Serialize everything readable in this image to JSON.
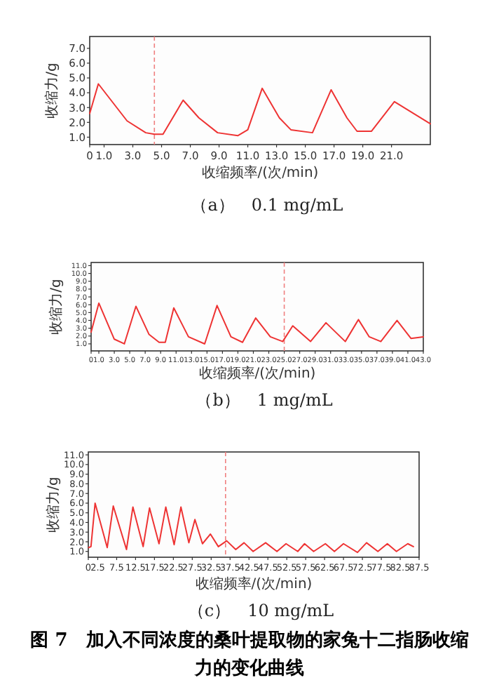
{
  "chart_data": [
    {
      "type": "line",
      "title": "（a）　0.1 mg/mL",
      "xlabel": "收缩频率/(次/min)",
      "ylabel": "收缩力/g",
      "x": [
        0,
        0.6,
        2.6,
        3.9,
        4.5,
        5.1,
        6.5,
        7.6,
        8.9,
        10.3,
        11,
        12,
        13.2,
        14,
        15.5,
        16.8,
        17.9,
        18.6,
        19.6,
        21.2,
        23.7
      ],
      "series": [
        {
          "color": "#ee3333",
          "values": [
            2.6,
            4.6,
            2.1,
            1.3,
            1.2,
            1.2,
            3.5,
            2.3,
            1.3,
            1.1,
            1.5,
            4.3,
            2.3,
            1.5,
            1.3,
            4.2,
            2.3,
            1.4,
            1.4,
            3.4,
            1.9
          ]
        }
      ],
      "xlim": [
        0,
        23.7
      ],
      "ylim": [
        0.5,
        7.8
      ],
      "xticks": [
        0,
        {
          "value": 1,
          "label": "1.0"
        },
        {
          "value": 3,
          "label": "3.0"
        },
        {
          "value": 5,
          "label": "5.0"
        },
        {
          "value": 7,
          "label": "7.0"
        },
        {
          "value": 9,
          "label": "9.0"
        },
        {
          "value": 11,
          "label": "11.0"
        },
        {
          "value": 13,
          "label": "13.0"
        },
        {
          "value": 15,
          "label": "15.0"
        },
        {
          "value": 17,
          "label": "17.0"
        },
        {
          "value": 19,
          "label": "19.0"
        },
        {
          "value": 21,
          "label": "21.0"
        }
      ],
      "yticks": [
        {
          "value": 1,
          "label": "1.0"
        },
        {
          "value": 2,
          "label": "2.0"
        },
        {
          "value": 3,
          "label": "3.0"
        },
        {
          "value": 4,
          "label": "4.0"
        },
        {
          "value": 5,
          "label": "5.0"
        },
        {
          "value": 6,
          "label": "6.0"
        },
        {
          "value": 7,
          "label": "7.0"
        }
      ],
      "ref_lines": [
        {
          "axis": "x",
          "value": 4.5,
          "color": "#f08080",
          "line_style": "dashed"
        }
      ]
    },
    {
      "type": "line",
      "title": "（b）　1 mg/mL",
      "xlabel": "收缩频率/(次/min)",
      "ylabel": "收缩力/g",
      "x": [
        0,
        1,
        3,
        4.3,
        5.8,
        7.5,
        8.8,
        9.6,
        10.7,
        12.6,
        14.7,
        16.3,
        18.1,
        19.6,
        21.3,
        23.2,
        24.8,
        26.1,
        28.4,
        30.4,
        32.9,
        34.6,
        36,
        37.5,
        39.6,
        41.4,
        43
      ],
      "series": [
        {
          "color": "#ee3333",
          "values": [
            2.5,
            6.2,
            1.6,
            1.0,
            5.8,
            2.2,
            1.2,
            1.2,
            5.6,
            1.9,
            1.0,
            5.9,
            1.9,
            1.2,
            4.3,
            1.9,
            1.3,
            3.3,
            1.3,
            3.7,
            1.3,
            4.1,
            1.9,
            1.3,
            4.0,
            1.7,
            1.9
          ]
        }
      ],
      "xlim": [
        0,
        43
      ],
      "ylim": [
        0.1,
        11.4
      ],
      "xticks": [
        0,
        {
          "value": 1,
          "label": "1.0"
        },
        {
          "value": 3,
          "label": "3.0"
        },
        {
          "value": 5,
          "label": "5.0"
        },
        {
          "value": 7,
          "label": "7.0"
        },
        {
          "value": 9,
          "label": "9.0"
        },
        {
          "value": 11,
          "label": "11.0"
        },
        {
          "value": 13,
          "label": "13.0"
        },
        {
          "value": 15,
          "label": "15.0"
        },
        {
          "value": 17,
          "label": "17.0"
        },
        {
          "value": 19,
          "label": "19.0"
        },
        {
          "value": 21,
          "label": "21.0"
        },
        {
          "value": 23,
          "label": "23.0"
        },
        {
          "value": 25,
          "label": "25.0"
        },
        {
          "value": 27,
          "label": "27.0"
        },
        {
          "value": 29,
          "label": "29.0"
        },
        {
          "value": 31,
          "label": "31.0"
        },
        {
          "value": 33,
          "label": "33.0"
        },
        {
          "value": 35,
          "label": "35.0"
        },
        {
          "value": 37,
          "label": "37.0"
        },
        {
          "value": 39,
          "label": "39.0"
        },
        {
          "value": 41,
          "label": "41.0"
        },
        {
          "value": 43,
          "label": "43.0"
        }
      ],
      "yticks": [
        {
          "value": 1,
          "label": "1.0"
        },
        {
          "value": 2,
          "label": "2.0"
        },
        {
          "value": 3,
          "label": "3.0"
        },
        {
          "value": 4,
          "label": "4.0"
        },
        {
          "value": 5,
          "label": "5.0"
        },
        {
          "value": 6,
          "label": "6.0"
        },
        {
          "value": 7,
          "label": "7.0"
        },
        {
          "value": 8,
          "label": "8.0"
        },
        {
          "value": 9,
          "label": "9.0"
        },
        {
          "value": 10,
          "label": "10.0"
        },
        {
          "value": 11,
          "label": "11.0"
        }
      ],
      "ref_lines": [
        {
          "axis": "x",
          "value": 25,
          "color": "#f08080",
          "line_style": "dashed"
        }
      ]
    },
    {
      "type": "line",
      "title": "（c）　10 mg/mL",
      "xlabel": "收缩频率/(次/min)",
      "ylabel": "收缩力/g",
      "annotations": [
        "图 7　加入不同浓度的桑叶提取物的家兔十二指肠收缩力的变化曲线"
      ],
      "x": [
        0.1,
        0.7,
        1.8,
        5,
        6.6,
        10.1,
        11.8,
        14.5,
        16.2,
        18.7,
        20.5,
        22.7,
        24.5,
        26.6,
        28.2,
        30.2,
        32.3,
        34.4,
        36.6,
        39,
        41.2,
        43.6,
        46.9,
        49.9,
        52.3,
        55.4,
        57.2,
        59.6,
        62.7,
        65.1,
        67.5,
        71.2,
        73.6,
        76.6,
        79.1,
        81.5,
        84.5,
        86
      ],
      "series": [
        {
          "color": "#ee3333",
          "values": [
            1.4,
            1.5,
            6.0,
            1.4,
            5.7,
            1.2,
            5.6,
            1.5,
            5.5,
            1.8,
            5.6,
            1.7,
            5.6,
            1.9,
            4.3,
            1.8,
            2.8,
            1.5,
            2.1,
            1.2,
            1.9,
            1.0,
            1.9,
            1.0,
            1.8,
            1.0,
            1.8,
            1.0,
            1.8,
            1.0,
            1.8,
            0.9,
            1.9,
            1.0,
            1.8,
            1.0,
            1.8,
            1.5
          ]
        }
      ],
      "xlim": [
        0,
        87.5
      ],
      "ylim": [
        0.4,
        11.3
      ],
      "xticks": [
        0,
        2.5,
        7.5,
        12.5,
        17.5,
        22.5,
        27.5,
        32.5,
        37.5,
        42.5,
        47.5,
        52.5,
        57.5,
        62.5,
        67.5,
        72.5,
        77.5,
        82.5,
        87.5
      ],
      "yticks": [
        {
          "value": 1,
          "label": "1.0"
        },
        {
          "value": 2,
          "label": "2.0"
        },
        {
          "value": 3,
          "label": "3.0"
        },
        {
          "value": 4,
          "label": "4.0"
        },
        {
          "value": 5,
          "label": "5.0"
        },
        {
          "value": 6,
          "label": "6.0"
        },
        {
          "value": 7,
          "label": "7.0"
        },
        {
          "value": 8,
          "label": "8.0"
        },
        {
          "value": 9,
          "label": "9.0"
        },
        {
          "value": 10,
          "label": "10.0"
        },
        {
          "value": 11,
          "label": "11.0"
        }
      ],
      "ref_lines": [
        {
          "axis": "x",
          "value": 36.3,
          "color": "#f08080",
          "line_style": "dashed"
        }
      ]
    }
  ]
}
